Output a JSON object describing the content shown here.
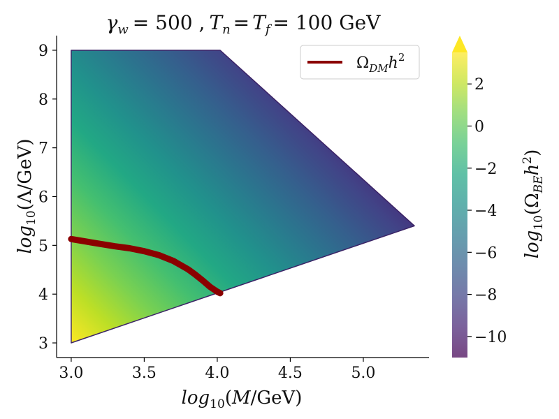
{
  "chart_data": {
    "type": "heatmap",
    "title": {
      "gamma_label": "γ",
      "gamma_sub": "w",
      "gamma_value": "= 500 ,",
      "tn_label": "T",
      "tn_sub": "n",
      "eq": "=",
      "tf_label": "T",
      "tf_sub": "f",
      "tf_value": "= 100 GeV"
    },
    "xlabel": {
      "func": "log",
      "sub": "10",
      "var": "M",
      "unit": "/GeV)"
    },
    "ylabel": {
      "func": "log",
      "sub": "10",
      "var": "Λ",
      "unit": "/GeV)"
    },
    "colorbar_label": {
      "func": "log",
      "sub": "10",
      "omega": "(Ω",
      "omega_sub": "BE",
      "tail": "h",
      "sup": "2",
      "close": ")"
    },
    "xlim": [
      2.9,
      5.45
    ],
    "ylim": [
      2.7,
      9.3
    ],
    "xticks": [
      "3.0",
      "3.5",
      "4.0",
      "4.5",
      "5.0"
    ],
    "yticks": [
      "3",
      "4",
      "5",
      "6",
      "7",
      "8",
      "9"
    ],
    "colorbar": {
      "range": [
        -11,
        3.5
      ],
      "ticks": [
        "2",
        "0",
        "−2",
        "−4",
        "−6",
        "−8",
        "−10"
      ],
      "tick_values": [
        2,
        0,
        -2,
        -4,
        -6,
        -8,
        -10
      ],
      "extend": "max",
      "colormap": "viridis",
      "extend_color": "#fde725"
    },
    "region": {
      "vertices_data": [
        [
          3.0,
          3.0
        ],
        [
          3.0,
          9.0
        ],
        [
          4.02,
          9.0
        ],
        [
          5.35,
          5.4
        ],
        [
          3.0,
          3.0
        ]
      ],
      "description_values": {
        "bottom_left": 3.5,
        "top_right": -11
      }
    },
    "series": [
      {
        "name": "Ω_DM h²",
        "legend": {
          "omega": "Ω",
          "sub": "DM",
          "tail": "h",
          "sup": "2"
        },
        "color": "#8b0000",
        "x": [
          3.0,
          3.1,
          3.2,
          3.3,
          3.4,
          3.5,
          3.6,
          3.7,
          3.8,
          3.85,
          3.9,
          3.95,
          4.0,
          4.02
        ],
        "y": [
          5.13,
          5.08,
          5.03,
          4.98,
          4.94,
          4.88,
          4.8,
          4.68,
          4.51,
          4.4,
          4.28,
          4.15,
          4.05,
          4.02
        ]
      }
    ],
    "legend_position": "top-right"
  }
}
